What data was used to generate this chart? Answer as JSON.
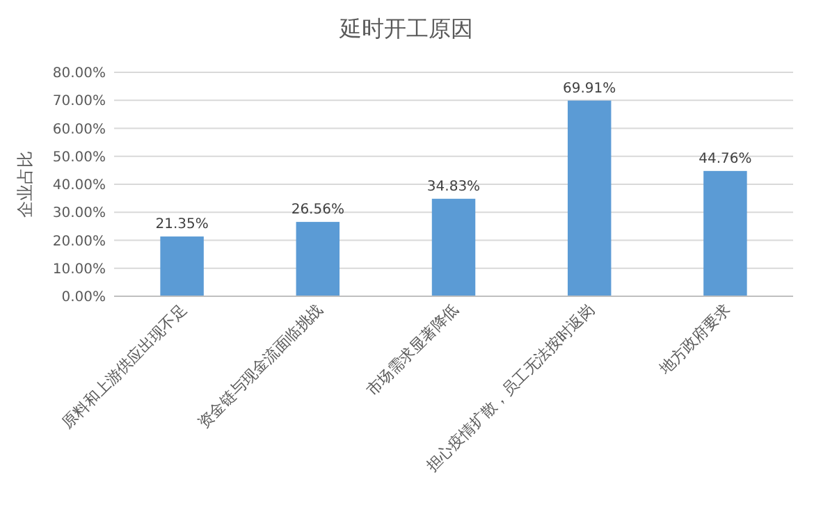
{
  "chart_data": {
    "type": "bar",
    "title": "延时开工原因",
    "ylabel": "企业占比",
    "categories": [
      "原料和上游供应出现不足",
      "资金链与现金流面临挑战",
      "市场需求显著降低",
      "担心疫情扩散，员工无法按时返岗",
      "地方政府要求"
    ],
    "values": [
      21.35,
      26.56,
      34.83,
      69.91,
      44.76
    ],
    "value_labels": [
      "21.35%",
      "26.56%",
      "34.83%",
      "69.91%",
      "44.76%"
    ],
    "color": "#5b9bd5",
    "ylim": [
      0,
      80
    ],
    "yticks": [
      {
        "value": 0,
        "label": "0.00%"
      },
      {
        "value": 10,
        "label": "10.00%"
      },
      {
        "value": 20,
        "label": "20.00%"
      },
      {
        "value": 30,
        "label": "30.00%"
      },
      {
        "value": 40,
        "label": "40.00%"
      },
      {
        "value": 50,
        "label": "50.00%"
      },
      {
        "value": 60,
        "label": "60.00%"
      },
      {
        "value": 70,
        "label": "70.00%"
      },
      {
        "value": 80,
        "label": "80.00%"
      }
    ],
    "grid": "y"
  }
}
